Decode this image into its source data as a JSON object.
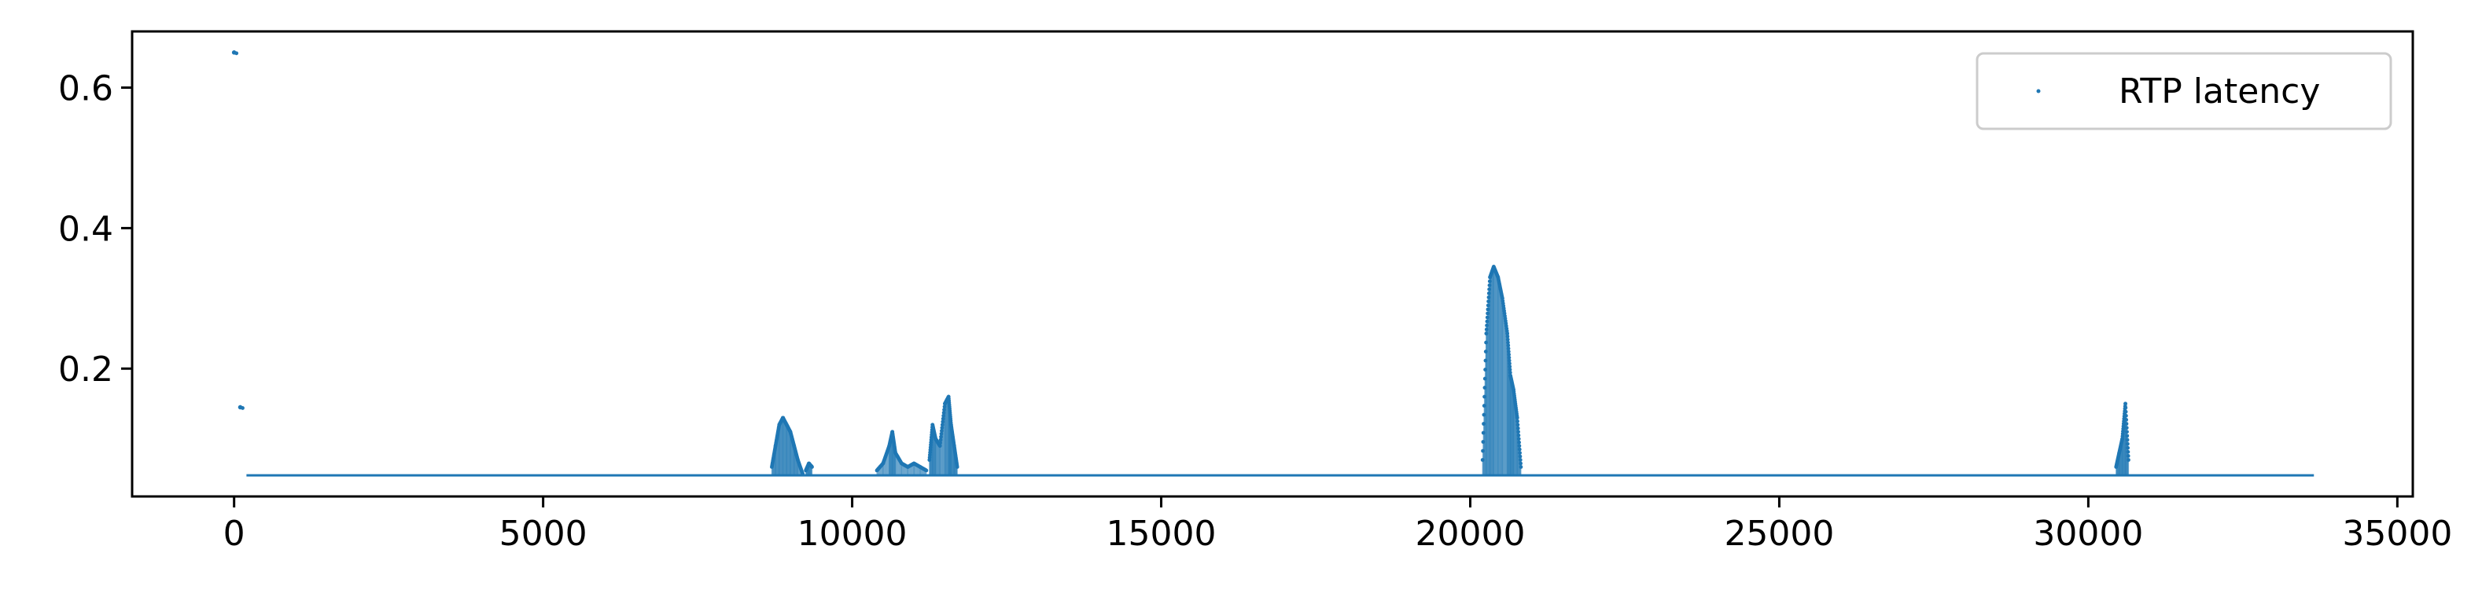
{
  "chart_data": {
    "type": "scatter",
    "title": "",
    "xlabel": "",
    "ylabel": "",
    "xlim": [
      -1650,
      35250
    ],
    "ylim": [
      0.018,
      0.68
    ],
    "x_ticks": [
      0,
      5000,
      10000,
      15000,
      20000,
      25000,
      30000,
      35000
    ],
    "x_tick_labels": [
      "0",
      "5000",
      "10000",
      "15000",
      "20000",
      "25000",
      "30000",
      "35000"
    ],
    "y_ticks": [
      0.2,
      0.4,
      0.6
    ],
    "y_tick_labels": [
      "0.2",
      "0.4",
      "0.6"
    ],
    "grid": false,
    "legend": {
      "position": "top-right",
      "entries": [
        "RTP latency"
      ]
    },
    "series": [
      {
        "name": "RTP latency",
        "color": "#1f77b4",
        "marker": "point",
        "baseline": 0.048,
        "x_start": 200,
        "x_end": 33650,
        "outliers": [
          {
            "x": 0,
            "y": 0.65
          },
          {
            "x": 100,
            "y": 0.145
          }
        ],
        "bursts": [
          {
            "x": [
              8700,
              8760,
              8820,
              8880,
              8940,
              9000,
              9060,
              9120,
              9200
            ],
            "y": [
              0.06,
              0.09,
              0.12,
              0.13,
              0.12,
              0.11,
              0.09,
              0.07,
              0.05
            ]
          },
          {
            "x": [
              9250,
              9300,
              9350
            ],
            "y": [
              0.055,
              0.065,
              0.06
            ]
          },
          {
            "x": [
              10400,
              10500,
              10600,
              10650,
              10700,
              10800,
              10900,
              11000,
              11100,
              11200
            ],
            "y": [
              0.055,
              0.065,
              0.09,
              0.11,
              0.08,
              0.065,
              0.06,
              0.065,
              0.06,
              0.055
            ]
          },
          {
            "x": [
              11250,
              11300,
              11350,
              11420,
              11500,
              11560,
              11600,
              11650,
              11700
            ],
            "y": [
              0.07,
              0.12,
              0.1,
              0.09,
              0.15,
              0.16,
              0.12,
              0.09,
              0.06
            ]
          },
          {
            "x": [
              20200,
              20260,
              20320,
              20380,
              20450,
              20520,
              20600,
              20650,
              20700,
              20760,
              20820
            ],
            "y": [
              0.07,
              0.25,
              0.33,
              0.345,
              0.33,
              0.3,
              0.25,
              0.19,
              0.17,
              0.13,
              0.06
            ]
          },
          {
            "x": [
              30450,
              30500,
              30550,
              30600,
              30650
            ],
            "y": [
              0.06,
              0.08,
              0.1,
              0.15,
              0.07
            ]
          }
        ]
      }
    ]
  }
}
